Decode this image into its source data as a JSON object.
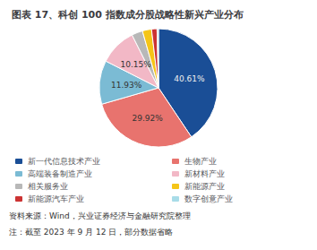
{
  "chart_data": {
    "type": "pie",
    "title": "图表 17、科创 100 指数成分股战略性新兴产业分布",
    "categories": [
      "新一代信息技术产业",
      "生物产业",
      "高端装备制造产业",
      "新材料产业",
      "相关服务业",
      "新能源产业",
      "新能源汽车产业",
      "数字创意产业"
    ],
    "values": [
      40.61,
      29.92,
      11.93,
      10.15,
      3.0,
      2.5,
      1.5,
      0.39
    ],
    "value_labels": [
      "40.61%",
      "29.92%",
      "11.93%",
      "10.15%",
      null,
      null,
      null,
      null
    ],
    "colors": [
      "#1a4e96",
      "#e8736e",
      "#7bbbd4",
      "#f2b8c6",
      "#b8b8b8",
      "#f5c518",
      "#cc3333",
      "#a8dce8"
    ],
    "data_labels": true,
    "legend": "bottom",
    "annotations": [
      "资料来源：Wind，兴业证券经济与金融研究院整理",
      "注：截至 2023 年 9 月 12 日，部分数据省略"
    ]
  }
}
